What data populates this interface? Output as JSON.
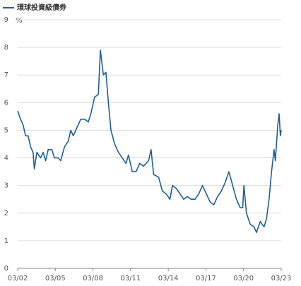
{
  "chart_data": {
    "type": "line",
    "series": [
      {
        "name": "環球投資級債券",
        "color": "#1f5f9a",
        "values": [
          5.7,
          5.4,
          5.2,
          4.8,
          4.8,
          4.4,
          4.2,
          3.6,
          4.2,
          4.0,
          4.2,
          3.9,
          4.3,
          4.3,
          4.0,
          4.0,
          3.9,
          4.4,
          4.6,
          5.0,
          4.8,
          5.1,
          5.4,
          5.4,
          5.3,
          5.6,
          6.2,
          6.3,
          7.9,
          7.0,
          7.1,
          6.0,
          5.0,
          4.5,
          4.2,
          4.0,
          3.8,
          4.1,
          3.5,
          3.5,
          3.8,
          3.7,
          3.9,
          4.3,
          3.4,
          3.3,
          2.8,
          2.7,
          2.5,
          3.0,
          2.9,
          2.7,
          2.5,
          2.6,
          2.5,
          2.5,
          2.7,
          3.0,
          2.7,
          2.4,
          2.3,
          2.6,
          2.8,
          3.1,
          3.5,
          3.0,
          2.5,
          2.2,
          2.2,
          3.0,
          2.0,
          1.6,
          1.5,
          1.3,
          1.7,
          1.5,
          1.8,
          2.5,
          3.5,
          4.3,
          3.9,
          5.2,
          5.6,
          4.8,
          5.0
        ]
      }
    ],
    "x": [
      2002.17,
      2002.4,
      2002.6,
      2002.8,
      2003.0,
      2003.2,
      2003.4,
      2003.5,
      2003.7,
      2004.0,
      2004.2,
      2004.4,
      2004.6,
      2004.9,
      2005.1,
      2005.4,
      2005.6,
      2005.9,
      2006.2,
      2006.4,
      2006.6,
      2006.9,
      2007.2,
      2007.5,
      2007.8,
      2008.0,
      2008.3,
      2008.6,
      2008.76,
      2009.0,
      2009.2,
      2009.4,
      2009.6,
      2009.9,
      2010.2,
      2010.5,
      2010.8,
      2011.0,
      2011.3,
      2011.6,
      2011.9,
      2012.2,
      2012.6,
      2012.8,
      2013.0,
      2013.4,
      2013.7,
      2014.0,
      2014.3,
      2014.5,
      2014.8,
      2015.1,
      2015.4,
      2015.7,
      2016.0,
      2016.3,
      2016.6,
      2016.9,
      2017.2,
      2017.5,
      2017.8,
      2018.1,
      2018.4,
      2018.7,
      2019.0,
      2019.3,
      2019.6,
      2019.9,
      2020.1,
      2020.2,
      2020.4,
      2020.7,
      2021.0,
      2021.2,
      2021.5,
      2021.8,
      2022.0,
      2022.2,
      2022.4,
      2022.6,
      2022.7,
      2022.9,
      2023.0,
      2023.1,
      2023.17
    ],
    "xlim": [
      2002.17,
      2023.17
    ],
    "xticks": [
      {
        "value": 2002.17,
        "label": "03/02"
      },
      {
        "value": 2005.17,
        "label": "03/05"
      },
      {
        "value": 2008.17,
        "label": "03/08"
      },
      {
        "value": 2011.17,
        "label": "03/11"
      },
      {
        "value": 2014.17,
        "label": "03/14"
      },
      {
        "value": 2017.17,
        "label": "03/17"
      },
      {
        "value": 2020.17,
        "label": "03/20"
      },
      {
        "value": 2023.17,
        "label": "03/23"
      }
    ],
    "ylim": [
      0,
      9
    ],
    "yticks": [
      0,
      1,
      2,
      3,
      4,
      5,
      6,
      7,
      8,
      9
    ],
    "y_unit": "%",
    "grid": true
  }
}
